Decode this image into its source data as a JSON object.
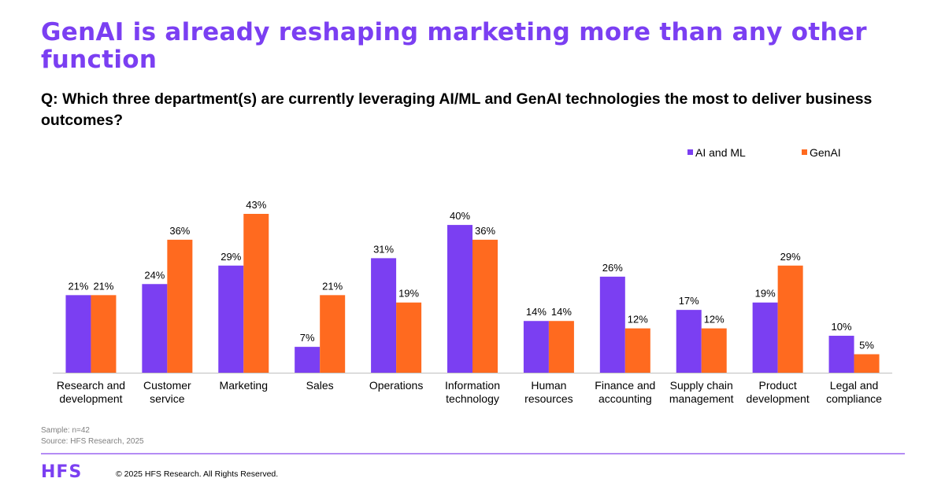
{
  "header": {
    "title": "GenAI is already reshaping marketing more than any other function",
    "question": "Q: Which three department(s) are currently leveraging AI/ML and GenAI technologies the most to deliver business outcomes?"
  },
  "footer": {
    "sample": "Sample: n=42",
    "source": "Source: HFS Research, 2025",
    "logo_text": "HFS",
    "copyright": "© 2025 HFS Research. All Rights Reserved."
  },
  "colors": {
    "ai_ml": "#7b3ff2",
    "genai": "#ff6a1f",
    "title": "#7b3ff2"
  },
  "chart_data": {
    "type": "bar",
    "title": "",
    "xlabel": "",
    "ylabel": "",
    "ylim": [
      0,
      45
    ],
    "grid": false,
    "legend_position": "top-right",
    "categories": [
      [
        "Research and",
        "development"
      ],
      [
        "Customer",
        "service"
      ],
      [
        "Marketing"
      ],
      [
        "Sales"
      ],
      [
        "Operations"
      ],
      [
        "Information",
        "technology"
      ],
      [
        "Human",
        "resources"
      ],
      [
        "Finance and",
        "accounting"
      ],
      [
        "Supply chain",
        "management"
      ],
      [
        "Product",
        "development"
      ],
      [
        "Legal and",
        "compliance"
      ]
    ],
    "series": [
      {
        "name": "AI and ML",
        "color": "#7b3ff2",
        "values": [
          21,
          24,
          29,
          7,
          31,
          40,
          14,
          26,
          17,
          19,
          10
        ]
      },
      {
        "name": "GenAI",
        "color": "#ff6a1f",
        "values": [
          21,
          36,
          43,
          21,
          19,
          36,
          14,
          12,
          12,
          29,
          5
        ]
      }
    ],
    "value_suffix": "%"
  }
}
